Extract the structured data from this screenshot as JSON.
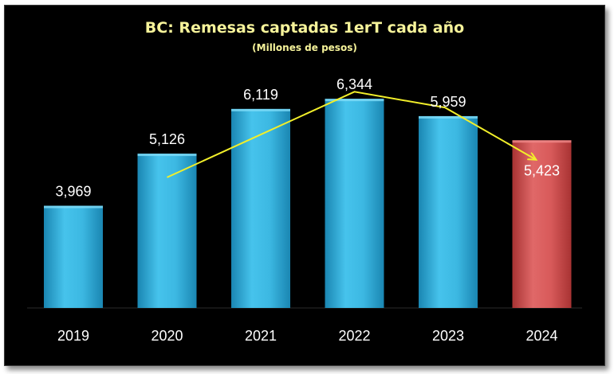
{
  "chart_data": {
    "type": "bar",
    "title": "BC: Remesas captadas 1erT cada año",
    "subtitle": "(Millones de pesos)",
    "categories": [
      "2019",
      "2020",
      "2021",
      "2022",
      "2023",
      "2024"
    ],
    "values": [
      3969,
      5126,
      6119,
      6344,
      5959,
      5423
    ],
    "value_labels": [
      "3,969",
      "5,126",
      "6,119",
      "6,344",
      "5,959",
      "5,423"
    ],
    "bar_colors": [
      "#2aa9d6",
      "#2aa9d6",
      "#2aa9d6",
      "#2aa9d6",
      "#2aa9d6",
      "#cf4f4f"
    ],
    "trend_line": {
      "color": "#f2ef2a",
      "values": [
        4600,
        5550,
        6500,
        6150,
        5000
      ],
      "arrow_end": true
    },
    "ylim": [
      1700,
      6700
    ],
    "grid": false,
    "legend": "none",
    "background": "#000000",
    "title_color": "#f6f39a"
  }
}
